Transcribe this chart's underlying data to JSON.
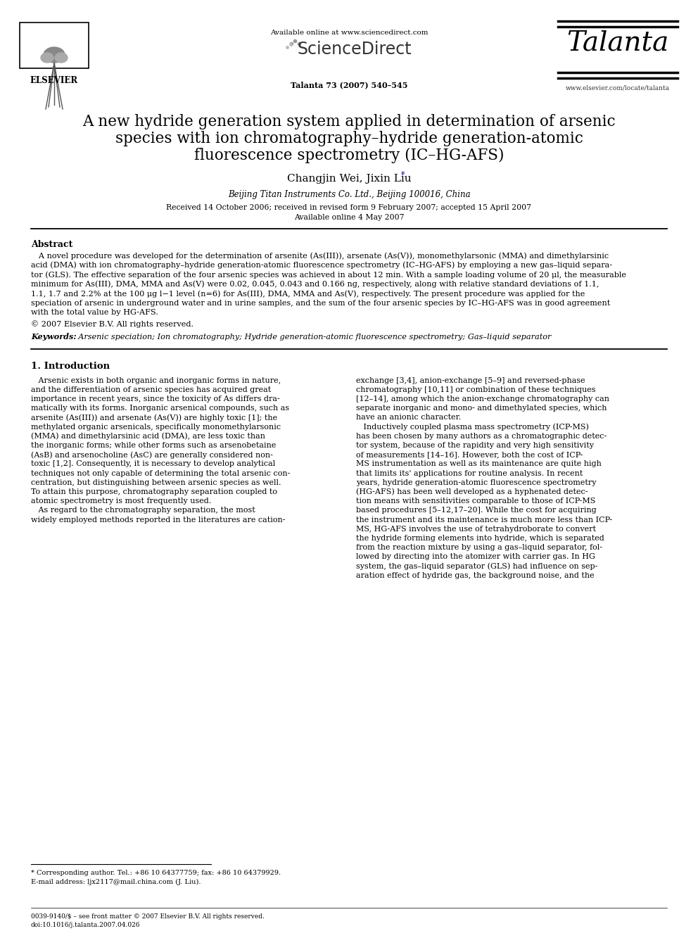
{
  "bg": "#ffffff",
  "header_online": "Available online at www.sciencedirect.com",
  "header_sd": "ScienceDirect",
  "header_journal": "Talanta",
  "header_issue": "Talanta 73 (2007) 540–545",
  "header_url": "www.elsevier.com/locate/talanta",
  "elsevier": "ELSEVIER",
  "title_line1": "A new hydride generation system applied in determination of arsenic",
  "title_line2": "species with ion chromatography–hydride generation-atomic",
  "title_line3": "fluorescence spectrometry (IC–HG-AFS)",
  "authors_pre": "Changjin Wei, Jixin Liu",
  "author_star": "*",
  "affiliation": "Beijing Titan Instruments Co. Ltd., Beijing 100016, China",
  "dates1": "Received 14 October 2006; received in revised form 9 February 2007; accepted 15 April 2007",
  "dates2": "Available online 4 May 2007",
  "abstract_title": "Abstract",
  "abstract_lines": [
    "   A novel procedure was developed for the determination of arsenite (As(III)), arsenate (As(V)), monomethylarsonic (MMA) and dimethylarsinic",
    "acid (DMA) with ion chromatography–hydride generation-atomic fluorescence spectrometry (IC–HG-AFS) by employing a new gas–liquid separa-",
    "tor (GLS). The effective separation of the four arsenic species was achieved in about 12 min. With a sample loading volume of 20 μl, the measurable",
    "minimum for As(III), DMA, MMA and As(V) were 0.02, 0.045, 0.043 and 0.166 ng, respectively, along with relative standard deviations of 1.1,",
    "1.1, 1.7 and 2.2% at the 100 μg l−1 level (n=6) for As(III), DMA, MMA and As(V), respectively. The present procedure was applied for the",
    "speciation of arsenic in underground water and in urine samples, and the sum of the four arsenic species by IC–HG-AFS was in good agreement",
    "with the total value by HG-AFS."
  ],
  "copyright": "© 2007 Elsevier B.V. All rights reserved.",
  "kw_label": "Keywords:",
  "keywords": "  Arsenic speciation; Ion chromatography; Hydride generation-atomic fluorescence spectrometry; Gas–liquid separator",
  "intro_title": "1. Introduction",
  "col1_lines": [
    "   Arsenic exists in both organic and inorganic forms in nature,",
    "and the differentiation of arsenic species has acquired great",
    "importance in recent years, since the toxicity of As differs dra-",
    "matically with its forms. Inorganic arsenical compounds, such as",
    "arsenite (As(III)) and arsenate (As(V)) are highly toxic [1]; the",
    "methylated organic arsenicals, specifically monomethylarsonic",
    "(MMA) and dimethylarsinic acid (DMA), are less toxic than",
    "the inorganic forms; while other forms such as arsenobetaine",
    "(AsB) and arsenocholine (AsC) are generally considered non-",
    "toxic [1,2]. Consequently, it is necessary to develop analytical",
    "techniques not only capable of determining the total arsenic con-",
    "centration, but distinguishing between arsenic species as well.",
    "To attain this purpose, chromatography separation coupled to",
    "atomic spectrometry is most frequently used.",
    "   As regard to the chromatography separation, the most",
    "widely employed methods reported in the literatures are cation-"
  ],
  "col2_lines": [
    "exchange [3,4], anion-exchange [5–9] and reversed-phase",
    "chromatography [10,11] or combination of these techniques",
    "[12–14], among which the anion-exchange chromatography can",
    "separate inorganic and mono- and dimethylated species, which",
    "have an anionic character.",
    "   Inductively coupled plasma mass spectrometry (ICP-MS)",
    "has been chosen by many authors as a chromatographic detec-",
    "tor system, because of the rapidity and very high sensitivity",
    "of measurements [14–16]. However, both the cost of ICP-",
    "MS instrumentation as well as its maintenance are quite high",
    "that limits its' applications for routine analysis. In recent",
    "years, hydride generation-atomic fluorescence spectrometry",
    "(HG-AFS) has been well developed as a hyphenated detec-",
    "tion means with sensitivities comparable to those of ICP-MS",
    "based procedures [5–12,17–20]. While the cost for acquiring",
    "the instrument and its maintenance is much more less than ICP-",
    "MS, HG-AFS involves the use of tetrahydroborate to convert",
    "the hydride forming elements into hydride, which is separated",
    "from the reaction mixture by using a gas–liquid separator, fol-",
    "lowed by directing into the atomizer with carrier gas. In HG",
    "system, the gas–liquid separator (GLS) had influence on sep-",
    "aration effect of hydride gas, the background noise, and the"
  ],
  "footnote1": "* Corresponding author. Tel.: +86 10 64377759; fax: +86 10 64379929.",
  "footnote2": "E-mail address: ljx2117@mail.china.com (J. Liu).",
  "footer1": "0039-9140/$ – see front matter © 2007 Elsevier B.V. All rights reserved.",
  "footer2": "doi:10.1016/j.talanta.2007.04.026",
  "link_color": "#0000cc",
  "line_color": "#000000"
}
